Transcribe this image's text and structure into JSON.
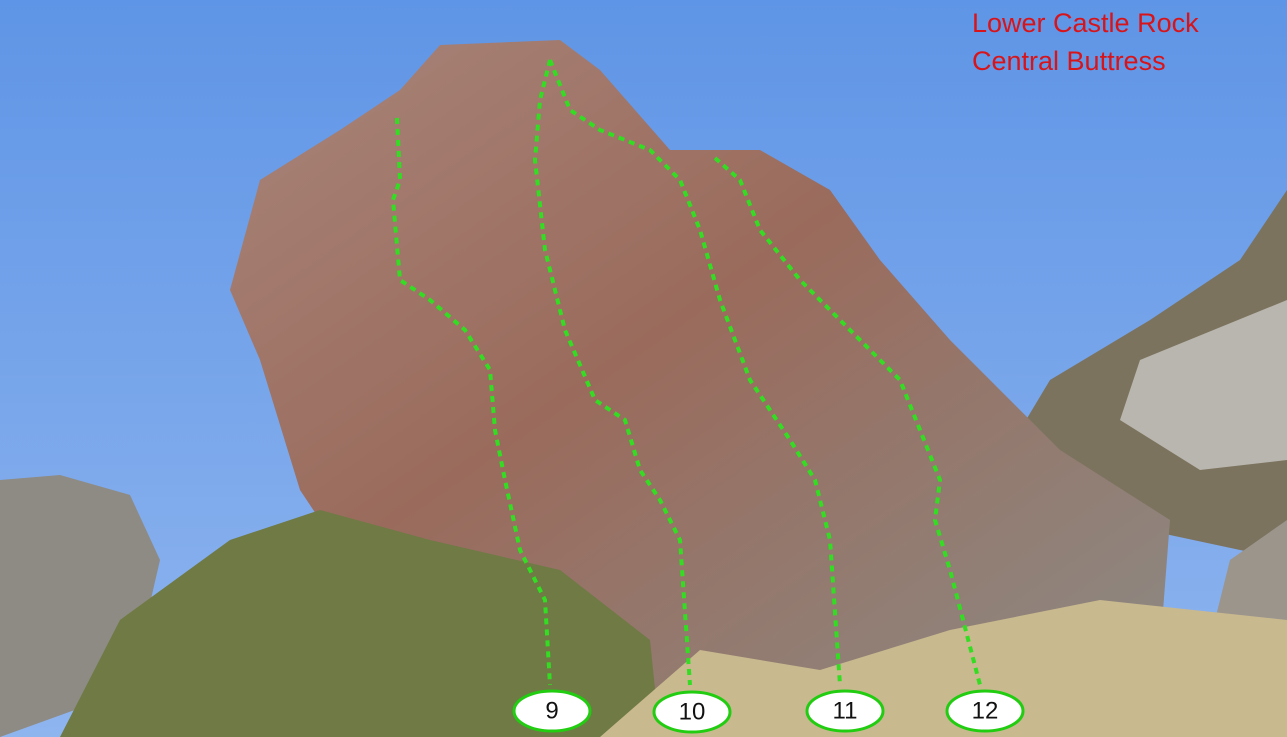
{
  "header": {
    "title_lines": [
      "Lower Castle Rock",
      "Central Buttress"
    ]
  },
  "routes": [
    {
      "label": "9"
    },
    {
      "label": "10"
    },
    {
      "label": "11"
    },
    {
      "label": "12"
    }
  ]
}
